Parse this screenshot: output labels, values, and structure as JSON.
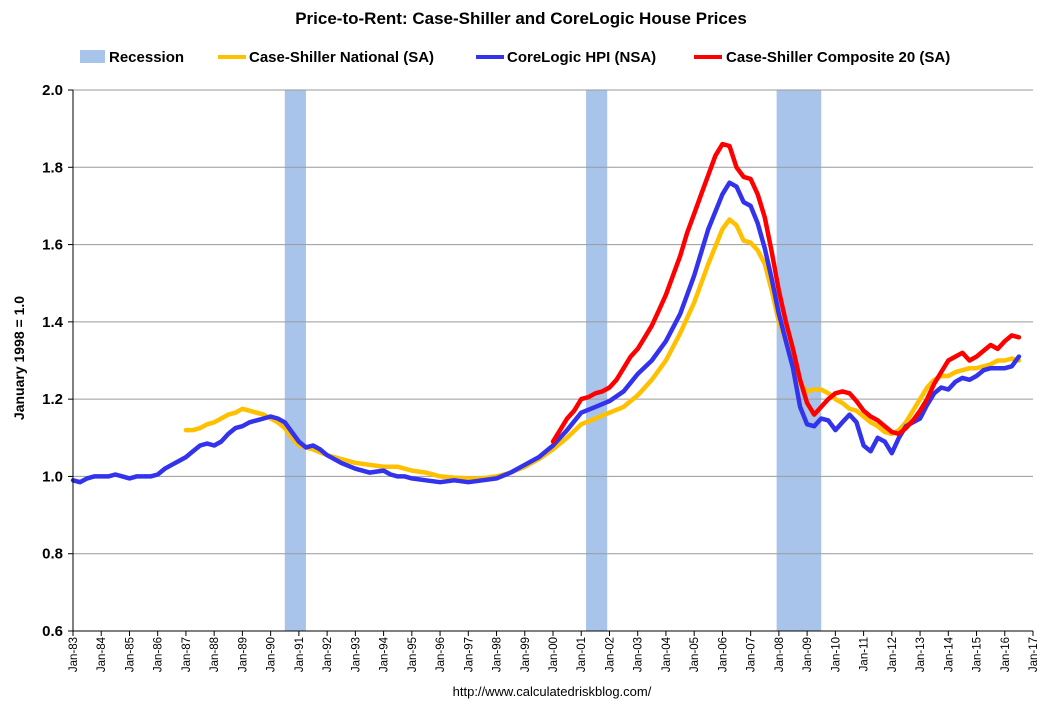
{
  "chart_data": {
    "type": "line",
    "title": "Price-to-Rent: Case-Shiller and CoreLogic House Prices",
    "ylabel": "January 1998 = 1.0",
    "xlabel": "",
    "source_text": "http://www.calculatedriskblog.com/",
    "ylim": [
      0.6,
      2.0
    ],
    "xlim": [
      1983.0,
      2017.0
    ],
    "y_ticks": [
      "0.6",
      "0.8",
      "1.0",
      "1.2",
      "1.4",
      "1.6",
      "1.8",
      "2.0"
    ],
    "x_ticks": [
      "Jan-83",
      "Jan-84",
      "Jan-85",
      "Jan-86",
      "Jan-87",
      "Jan-88",
      "Jan-89",
      "Jan-90",
      "Jan-91",
      "Jan-92",
      "Jan-93",
      "Jan-94",
      "Jan-95",
      "Jan-96",
      "Jan-97",
      "Jan-98",
      "Jan-99",
      "Jan-00",
      "Jan-01",
      "Jan-02",
      "Jan-03",
      "Jan-04",
      "Jan-05",
      "Jan-06",
      "Jan-07",
      "Jan-08",
      "Jan-09",
      "Jan-10",
      "Jan-11",
      "Jan-12",
      "Jan-13",
      "Jan-14",
      "Jan-15",
      "Jan-16",
      "Jan-17"
    ],
    "grid": "horizontal",
    "legend_position": "top",
    "recession_label": "Recession",
    "recession_color": "#a9c4eb",
    "recessions": [
      [
        1990.5,
        1991.25
      ],
      [
        2001.17,
        2001.92
      ],
      [
        2007.92,
        2009.5
      ]
    ],
    "series": [
      {
        "name": "Case-Shiller National (SA)",
        "color": "#ffc000",
        "x": [
          1987.0,
          1987.25,
          1987.5,
          1987.75,
          1988.0,
          1988.25,
          1988.5,
          1988.75,
          1989.0,
          1989.25,
          1989.5,
          1989.75,
          1990.0,
          1990.25,
          1990.5,
          1990.75,
          1991.0,
          1991.5,
          1992.0,
          1992.5,
          1993.0,
          1993.5,
          1994.0,
          1994.5,
          1995.0,
          1995.5,
          1996.0,
          1996.5,
          1997.0,
          1997.5,
          1998.0,
          1998.5,
          1999.0,
          1999.5,
          2000.0,
          2000.5,
          2001.0,
          2001.5,
          2002.0,
          2002.5,
          2003.0,
          2003.5,
          2004.0,
          2004.5,
          2005.0,
          2005.5,
          2006.0,
          2006.25,
          2006.5,
          2006.75,
          2007.0,
          2007.25,
          2007.5,
          2007.75,
          2008.0,
          2008.25,
          2008.5,
          2008.75,
          2009.0,
          2009.25,
          2009.5,
          2009.75,
          2010.0,
          2010.25,
          2010.5,
          2010.75,
          2011.0,
          2011.25,
          2011.5,
          2011.75,
          2012.0,
          2012.25,
          2012.5,
          2012.75,
          2013.0,
          2013.25,
          2013.5,
          2013.75,
          2014.0,
          2014.25,
          2014.5,
          2014.75,
          2015.0,
          2015.25,
          2015.5,
          2015.75,
          2016.0,
          2016.25,
          2016.5
        ],
        "values": [
          1.12,
          1.12,
          1.125,
          1.135,
          1.14,
          1.15,
          1.16,
          1.165,
          1.175,
          1.17,
          1.165,
          1.16,
          1.15,
          1.14,
          1.125,
          1.1,
          1.08,
          1.07,
          1.055,
          1.045,
          1.035,
          1.03,
          1.025,
          1.025,
          1.015,
          1.01,
          1.0,
          0.997,
          0.995,
          0.995,
          1.0,
          1.01,
          1.025,
          1.045,
          1.07,
          1.1,
          1.135,
          1.15,
          1.165,
          1.18,
          1.21,
          1.25,
          1.3,
          1.37,
          1.45,
          1.55,
          1.64,
          1.665,
          1.65,
          1.61,
          1.605,
          1.585,
          1.55,
          1.48,
          1.4,
          1.35,
          1.29,
          1.24,
          1.22,
          1.225,
          1.225,
          1.215,
          1.2,
          1.19,
          1.175,
          1.17,
          1.155,
          1.14,
          1.13,
          1.115,
          1.11,
          1.12,
          1.14,
          1.17,
          1.2,
          1.23,
          1.25,
          1.26,
          1.26,
          1.27,
          1.275,
          1.28,
          1.28,
          1.285,
          1.29,
          1.3,
          1.3,
          1.305,
          1.3
        ]
      },
      {
        "name": "CoreLogic HPI (NSA)",
        "color": "#3333ee",
        "x": [
          1983.0,
          1983.25,
          1983.5,
          1983.75,
          1984.0,
          1984.25,
          1984.5,
          1984.75,
          1985.0,
          1985.25,
          1985.5,
          1985.75,
          1986.0,
          1986.25,
          1986.5,
          1986.75,
          1987.0,
          1987.25,
          1987.5,
          1987.75,
          1988.0,
          1988.25,
          1988.5,
          1988.75,
          1989.0,
          1989.25,
          1989.5,
          1989.75,
          1990.0,
          1990.25,
          1990.5,
          1990.75,
          1991.0,
          1991.25,
          1991.5,
          1991.75,
          1992.0,
          1992.5,
          1993.0,
          1993.5,
          1994.0,
          1994.25,
          1994.5,
          1994.75,
          1995.0,
          1995.5,
          1996.0,
          1996.5,
          1997.0,
          1997.5,
          1998.0,
          1998.5,
          1999.0,
          1999.5,
          2000.0,
          2000.5,
          2001.0,
          2001.5,
          2002.0,
          2002.5,
          2003.0,
          2003.5,
          2004.0,
          2004.5,
          2005.0,
          2005.5,
          2006.0,
          2006.25,
          2006.5,
          2006.75,
          2007.0,
          2007.25,
          2007.5,
          2007.75,
          2008.0,
          2008.25,
          2008.5,
          2008.75,
          2009.0,
          2009.25,
          2009.5,
          2009.75,
          2010.0,
          2010.25,
          2010.5,
          2010.75,
          2011.0,
          2011.25,
          2011.5,
          2011.75,
          2012.0,
          2012.25,
          2012.5,
          2012.75,
          2013.0,
          2013.25,
          2013.5,
          2013.75,
          2014.0,
          2014.25,
          2014.5,
          2014.75,
          2015.0,
          2015.25,
          2015.5,
          2015.75,
          2016.0,
          2016.25,
          2016.5
        ],
        "values": [
          0.99,
          0.985,
          0.995,
          1.0,
          1.0,
          1.0,
          1.005,
          1.0,
          0.995,
          1.0,
          1.0,
          1.0,
          1.005,
          1.02,
          1.03,
          1.04,
          1.05,
          1.065,
          1.08,
          1.085,
          1.08,
          1.09,
          1.11,
          1.125,
          1.13,
          1.14,
          1.145,
          1.15,
          1.155,
          1.15,
          1.14,
          1.115,
          1.09,
          1.075,
          1.08,
          1.07,
          1.055,
          1.035,
          1.02,
          1.01,
          1.015,
          1.005,
          1.0,
          1.0,
          0.995,
          0.99,
          0.985,
          0.99,
          0.985,
          0.99,
          0.995,
          1.01,
          1.03,
          1.05,
          1.08,
          1.12,
          1.165,
          1.18,
          1.195,
          1.22,
          1.265,
          1.3,
          1.35,
          1.42,
          1.52,
          1.64,
          1.73,
          1.76,
          1.75,
          1.71,
          1.7,
          1.655,
          1.59,
          1.51,
          1.42,
          1.35,
          1.28,
          1.18,
          1.135,
          1.13,
          1.15,
          1.145,
          1.12,
          1.14,
          1.16,
          1.14,
          1.08,
          1.065,
          1.1,
          1.09,
          1.06,
          1.1,
          1.13,
          1.14,
          1.15,
          1.185,
          1.215,
          1.23,
          1.225,
          1.245,
          1.255,
          1.25,
          1.26,
          1.275,
          1.28,
          1.28,
          1.28,
          1.285,
          1.31
        ]
      },
      {
        "name": "Case-Shiller Composite 20 (SA)",
        "color": "#ff0000",
        "x": [
          2000.0,
          2000.25,
          2000.5,
          2000.75,
          2001.0,
          2001.25,
          2001.5,
          2001.75,
          2002.0,
          2002.25,
          2002.5,
          2002.75,
          2003.0,
          2003.25,
          2003.5,
          2003.75,
          2004.0,
          2004.25,
          2004.5,
          2004.75,
          2005.0,
          2005.25,
          2005.5,
          2005.75,
          2006.0,
          2006.25,
          2006.5,
          2006.75,
          2007.0,
          2007.25,
          2007.5,
          2007.75,
          2008.0,
          2008.25,
          2008.5,
          2008.75,
          2009.0,
          2009.25,
          2009.5,
          2009.75,
          2010.0,
          2010.25,
          2010.5,
          2010.75,
          2011.0,
          2011.25,
          2011.5,
          2011.75,
          2012.0,
          2012.25,
          2012.5,
          2012.75,
          2013.0,
          2013.25,
          2013.5,
          2013.75,
          2014.0,
          2014.25,
          2014.5,
          2014.75,
          2015.0,
          2015.25,
          2015.5,
          2015.75,
          2016.0,
          2016.25,
          2016.5
        ],
        "values": [
          1.09,
          1.12,
          1.15,
          1.17,
          1.2,
          1.205,
          1.215,
          1.22,
          1.23,
          1.25,
          1.28,
          1.31,
          1.33,
          1.36,
          1.39,
          1.43,
          1.47,
          1.52,
          1.57,
          1.63,
          1.68,
          1.73,
          1.78,
          1.83,
          1.86,
          1.855,
          1.8,
          1.775,
          1.77,
          1.73,
          1.67,
          1.58,
          1.48,
          1.4,
          1.33,
          1.25,
          1.19,
          1.16,
          1.18,
          1.2,
          1.215,
          1.22,
          1.215,
          1.195,
          1.17,
          1.155,
          1.145,
          1.13,
          1.115,
          1.11,
          1.125,
          1.145,
          1.17,
          1.2,
          1.24,
          1.27,
          1.3,
          1.31,
          1.32,
          1.3,
          1.31,
          1.325,
          1.34,
          1.33,
          1.35,
          1.365,
          1.36
        ]
      }
    ]
  }
}
